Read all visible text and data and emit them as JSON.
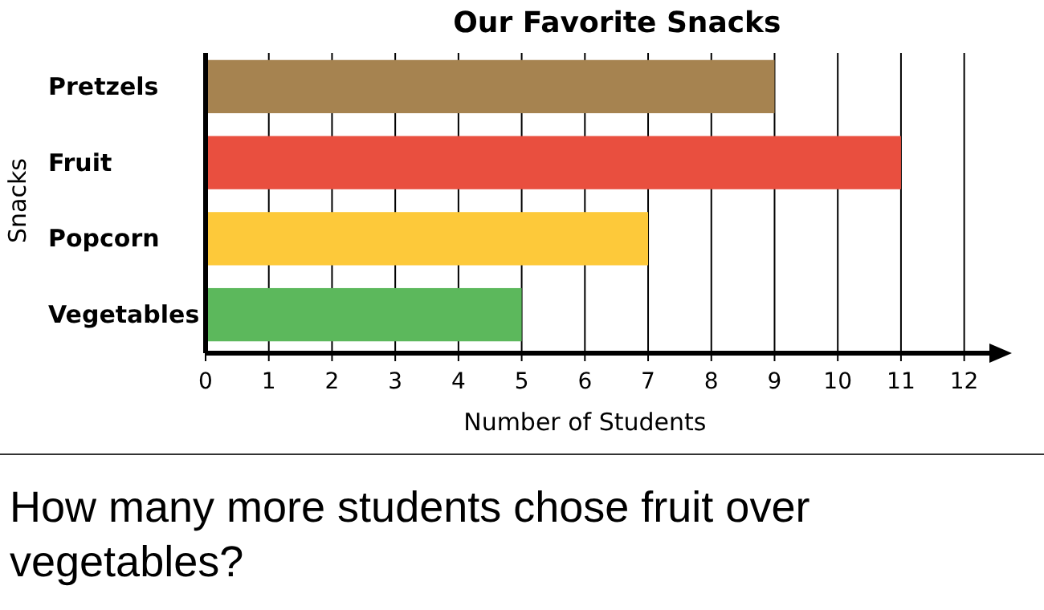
{
  "chart_data": {
    "type": "bar",
    "orientation": "horizontal",
    "title": "Our Favorite Snacks",
    "xlabel": "Number of Students",
    "ylabel": "Snacks",
    "categories": [
      "Pretzels",
      "Fruit",
      "Popcorn",
      "Vegetables"
    ],
    "values": [
      9,
      11,
      7,
      5
    ],
    "colors": [
      "#a68350",
      "#e94f3f",
      "#fdc93a",
      "#5cb85c"
    ],
    "xlim": [
      0,
      12.5
    ],
    "xticks": [
      0,
      1,
      2,
      3,
      4,
      5,
      6,
      7,
      8,
      9,
      10,
      11,
      12
    ],
    "grid": "x",
    "annotations": [
      "How many more students chose fruit over vegetables?"
    ]
  }
}
